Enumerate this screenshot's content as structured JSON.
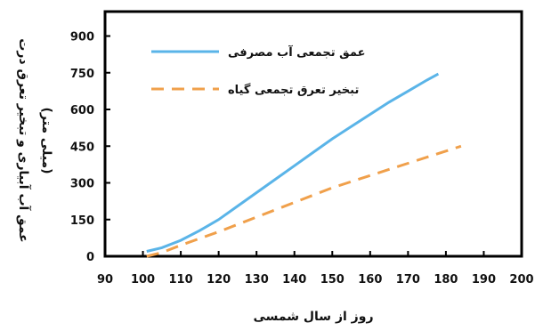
{
  "chart_data": {
    "type": "line",
    "xlabel": "روز از سال شمسی",
    "ylabel": "عمق آب آبیاری و تبخیر تعرق درت",
    "ylabel_unit": "(میلی متر)",
    "xlim": [
      90,
      200
    ],
    "ylim": [
      0,
      1000
    ],
    "x_ticks": [
      90,
      100,
      110,
      120,
      130,
      140,
      150,
      160,
      170,
      180,
      190,
      200
    ],
    "y_ticks": [
      0,
      150,
      300,
      450,
      600,
      750,
      900
    ],
    "grid": false,
    "legend_position": "top-left",
    "series": [
      {
        "name": "عمق تجمعی آب مصرفی",
        "color": "#5ab4e8",
        "dash": "solid",
        "x": [
          101,
          105,
          110,
          115,
          120,
          125,
          130,
          135,
          140,
          145,
          150,
          155,
          160,
          165,
          170,
          175,
          178
        ],
        "y": [
          20,
          35,
          65,
          105,
          150,
          205,
          260,
          315,
          370,
          425,
          480,
          530,
          580,
          630,
          675,
          720,
          745
        ]
      },
      {
        "name": "تبخیر تعرق تجمعی گیاه",
        "color": "#f0a04b",
        "dash": "dashed",
        "x": [
          101,
          105,
          110,
          120,
          130,
          140,
          150,
          160,
          170,
          180,
          184
        ],
        "y": [
          0,
          15,
          45,
          100,
          160,
          220,
          280,
          330,
          380,
          430,
          450
        ]
      }
    ]
  }
}
